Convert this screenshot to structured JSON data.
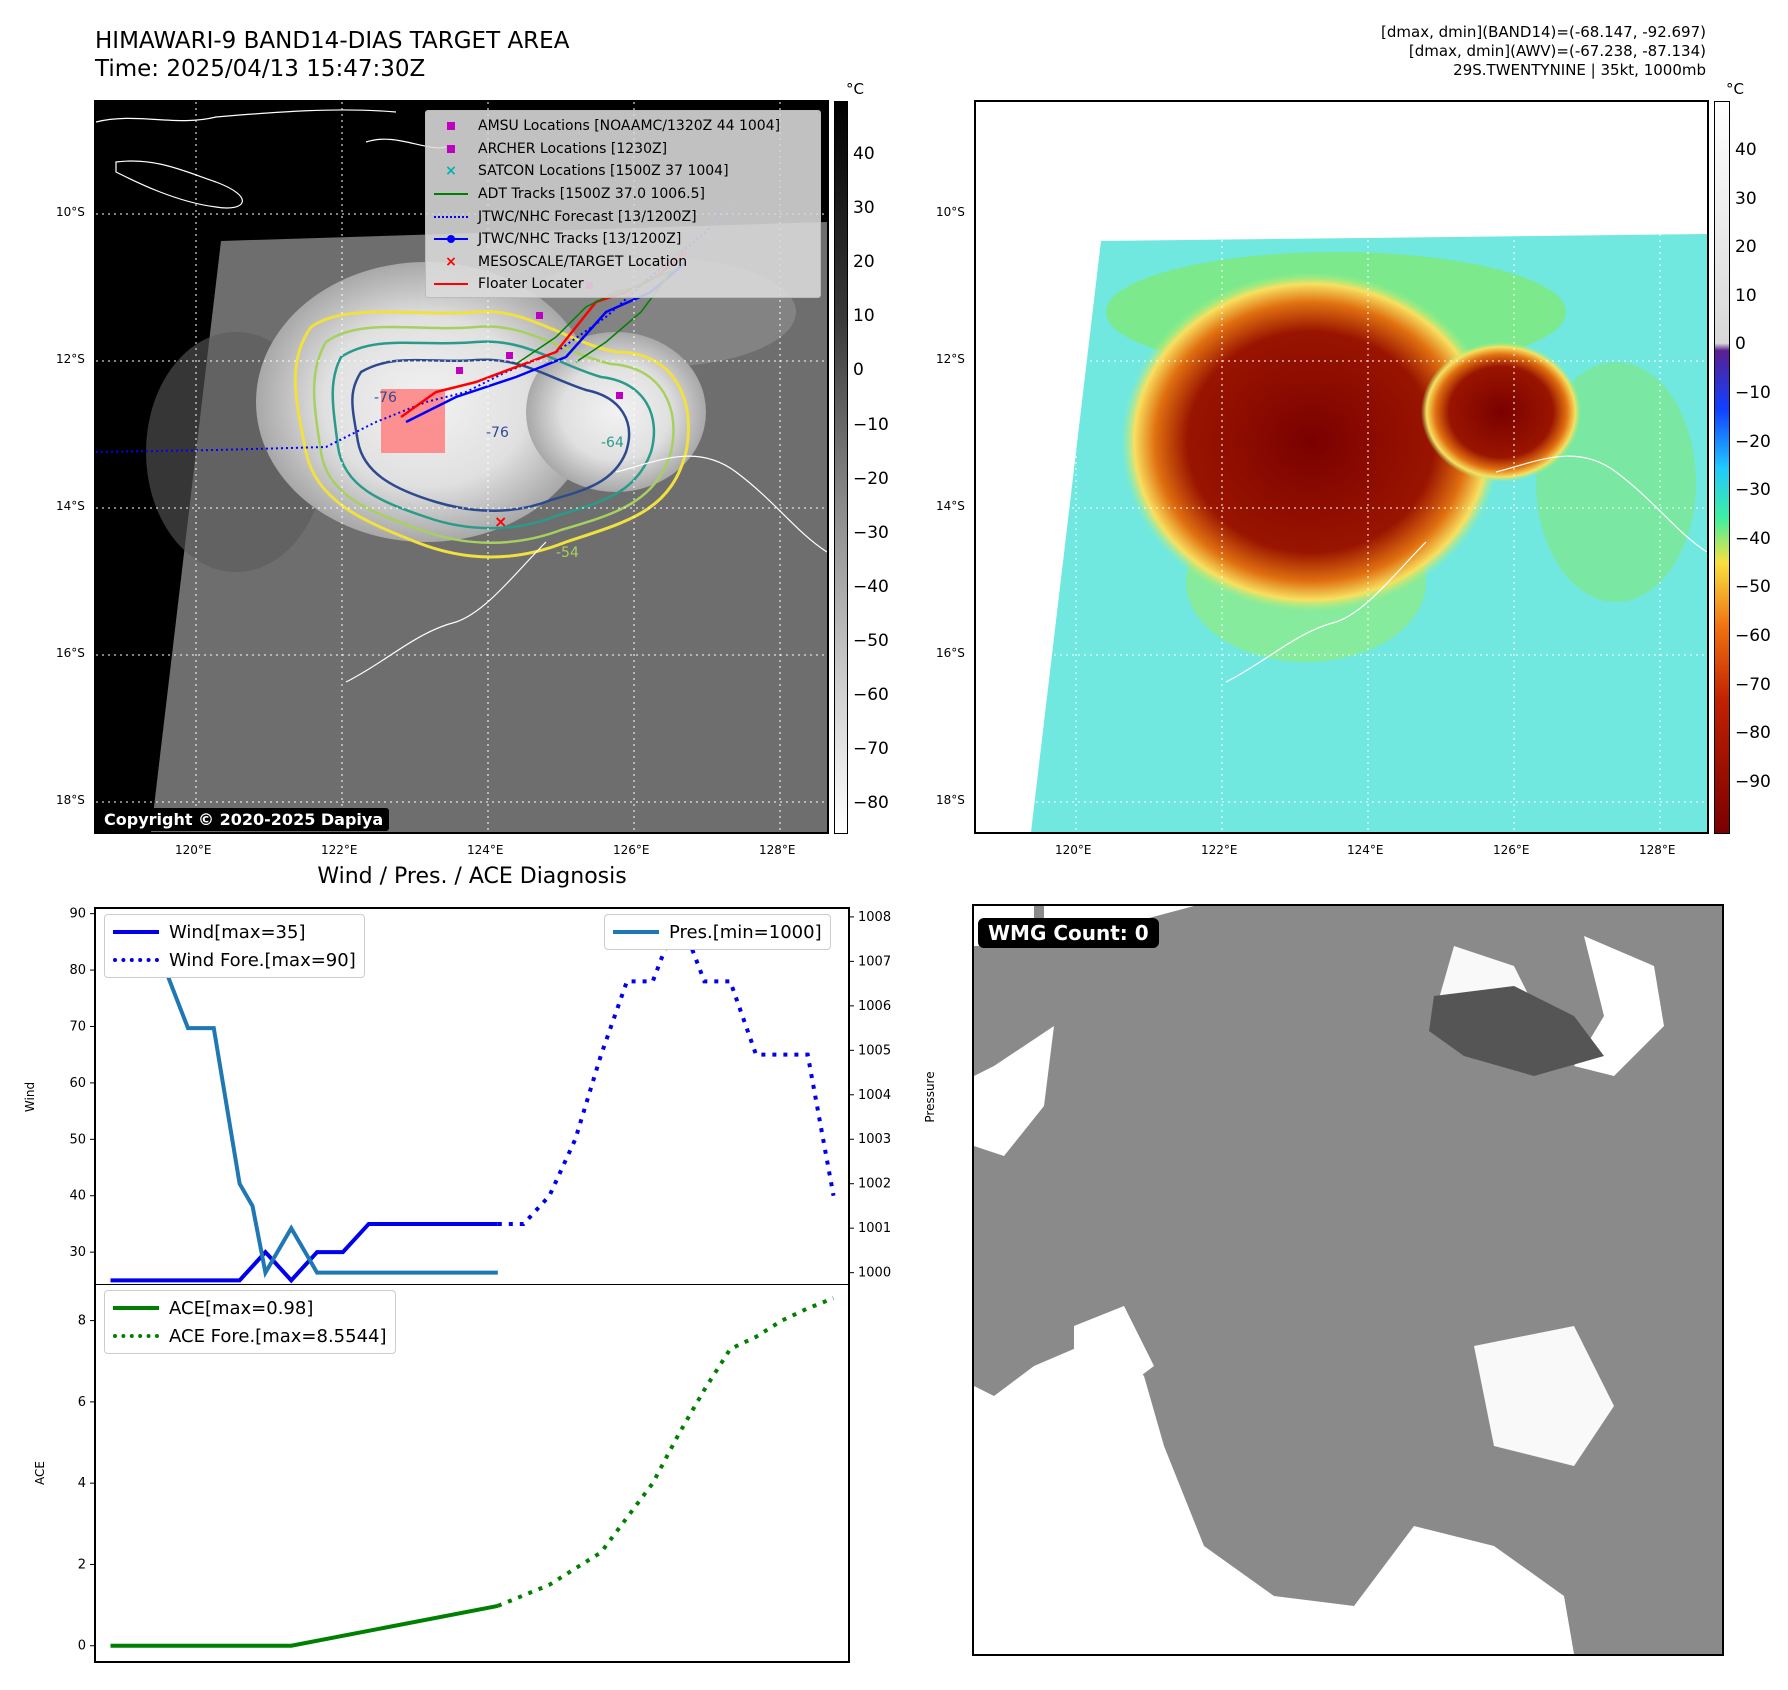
{
  "header": {
    "title_line1": "HIMAWARI-9 BAND14-DIAS TARGET AREA",
    "title_line2": "Time: 2025/04/13 15:47:30Z",
    "info_line1": "[dmax, dmin](BAND14)=(-68.147, -92.697)",
    "info_line2": "[dmax, dmin](AWV)=(-67.238, -87.134)",
    "info_line3": "29S.TWENTYNINE | 35kt, 1000mb"
  },
  "map": {
    "lat_ticks": [
      "10°S",
      "12°S",
      "14°S",
      "16°S",
      "18°S"
    ],
    "lon_ticks": [
      "120°E",
      "122°E",
      "124°E",
      "126°E",
      "128°E"
    ],
    "copyright": "Copyright © 2020-2025 Dapiya",
    "contour_labels": [
      "-76",
      "-76",
      "-64",
      "-64",
      "-54"
    ],
    "legend": [
      {
        "label": "AMSU Locations [NOAAMC/1320Z 44 1004]",
        "color": "#c000c0",
        "kind": "square"
      },
      {
        "label": "ARCHER Locations [1230Z]",
        "color": "#c000c0",
        "kind": "square"
      },
      {
        "label": "SATCON Locations [1500Z 37 1004]",
        "color": "#00b0b0",
        "kind": "x"
      },
      {
        "label": "ADT Tracks [1500Z 37.0 1006.5]",
        "color": "#008000",
        "kind": "line"
      },
      {
        "label": "JTWC/NHC Forecast [13/1200Z]",
        "color": "#0000ff",
        "kind": "dotted"
      },
      {
        "label": "JTWC/NHC Tracks [13/1200Z]",
        "color": "#0000ff",
        "kind": "line-dot"
      },
      {
        "label": "MESOSCALE/TARGET Location",
        "color": "#ff0000",
        "kind": "x"
      },
      {
        "label": "Floater Locater",
        "color": "#ff0000",
        "kind": "line"
      }
    ]
  },
  "colorbar_left": {
    "unit": "°C",
    "ticks": [
      "40",
      "30",
      "20",
      "10",
      "0",
      "−10",
      "−20",
      "−30",
      "−40",
      "−50",
      "−60",
      "−70",
      "−80"
    ]
  },
  "colorbar_right": {
    "unit": "°C",
    "ticks": [
      "40",
      "30",
      "20",
      "10",
      "0",
      "−10",
      "−20",
      "−30",
      "−40",
      "−50",
      "−60",
      "−70",
      "−80",
      "−90"
    ]
  },
  "wmg": {
    "label": "WMG Count: 0"
  },
  "chart_data": [
    {
      "type": "line",
      "title": "Wind / Pres. / ACE Diagnosis",
      "ylabel": "Wind",
      "y2label": "Pressure",
      "ylim": [
        24,
        91
      ],
      "y2lim": [
        999.7,
        1008.2
      ],
      "yticks": [
        30,
        40,
        50,
        60,
        70,
        80,
        90
      ],
      "y2ticks": [
        1000,
        1001,
        1002,
        1003,
        1004,
        1005,
        1006,
        1007,
        1008
      ],
      "legend_left": [
        "Wind[max=35]",
        "Wind Fore.[max=90]"
      ],
      "legend_right": [
        "Pres.[min=1000]"
      ],
      "series": [
        {
          "name": "Wind[max=35]",
          "axis": "left",
          "color": "#0000ee",
          "style": "solid",
          "x": [
            0,
            1,
            2,
            3,
            4,
            5,
            6,
            7,
            8,
            9,
            10,
            11,
            12,
            13,
            14,
            15
          ],
          "values": [
            25,
            25,
            25,
            25,
            25,
            25,
            30,
            25,
            30,
            30,
            35,
            35,
            35,
            35,
            35,
            35
          ]
        },
        {
          "name": "Wind Fore.[max=90]",
          "axis": "left",
          "color": "#0000ee",
          "style": "dotted",
          "x": [
            15,
            16,
            17,
            18,
            19,
            20,
            21,
            22,
            23,
            24,
            25,
            26,
            27,
            28
          ],
          "values": [
            35,
            35,
            40,
            50,
            65,
            78,
            78,
            90,
            78,
            78,
            65,
            65,
            65,
            40
          ]
        },
        {
          "name": "Pres.[min=1000]",
          "axis": "right",
          "color": "#1f77b4",
          "style": "solid",
          "x": [
            0,
            0.5,
            1,
            1.5,
            2,
            3,
            3.5,
            4,
            5,
            5.5,
            6,
            6.5,
            7,
            7.5,
            8,
            9,
            10,
            15
          ],
          "values": [
            1008,
            1007.5,
            1007,
            1007,
            1007,
            1005.5,
            1005.5,
            1005.5,
            1002,
            1001.5,
            1000,
            1000.5,
            1001,
            1000.5,
            1000,
            1000,
            1000,
            1000
          ]
        }
      ]
    },
    {
      "type": "line",
      "ylabel": "ACE",
      "ylim": [
        -0.4,
        8.9
      ],
      "yticks": [
        0,
        2,
        4,
        6,
        8
      ],
      "legend": [
        "ACE[max=0.98]",
        "ACE Fore.[max=8.5544]"
      ],
      "series": [
        {
          "name": "ACE[max=0.98]",
          "color": "#008000",
          "style": "solid",
          "x": [
            0,
            7,
            15
          ],
          "values": [
            0,
            0,
            0.98
          ]
        },
        {
          "name": "ACE Fore.[max=8.5544]",
          "color": "#008000",
          "style": "dotted",
          "x": [
            15,
            17,
            19,
            21,
            22,
            23,
            24,
            25,
            26,
            27,
            28
          ],
          "values": [
            0.98,
            1.5,
            2.3,
            4.0,
            5.2,
            6.3,
            7.3,
            7.6,
            8.0,
            8.3,
            8.55
          ]
        }
      ]
    }
  ]
}
